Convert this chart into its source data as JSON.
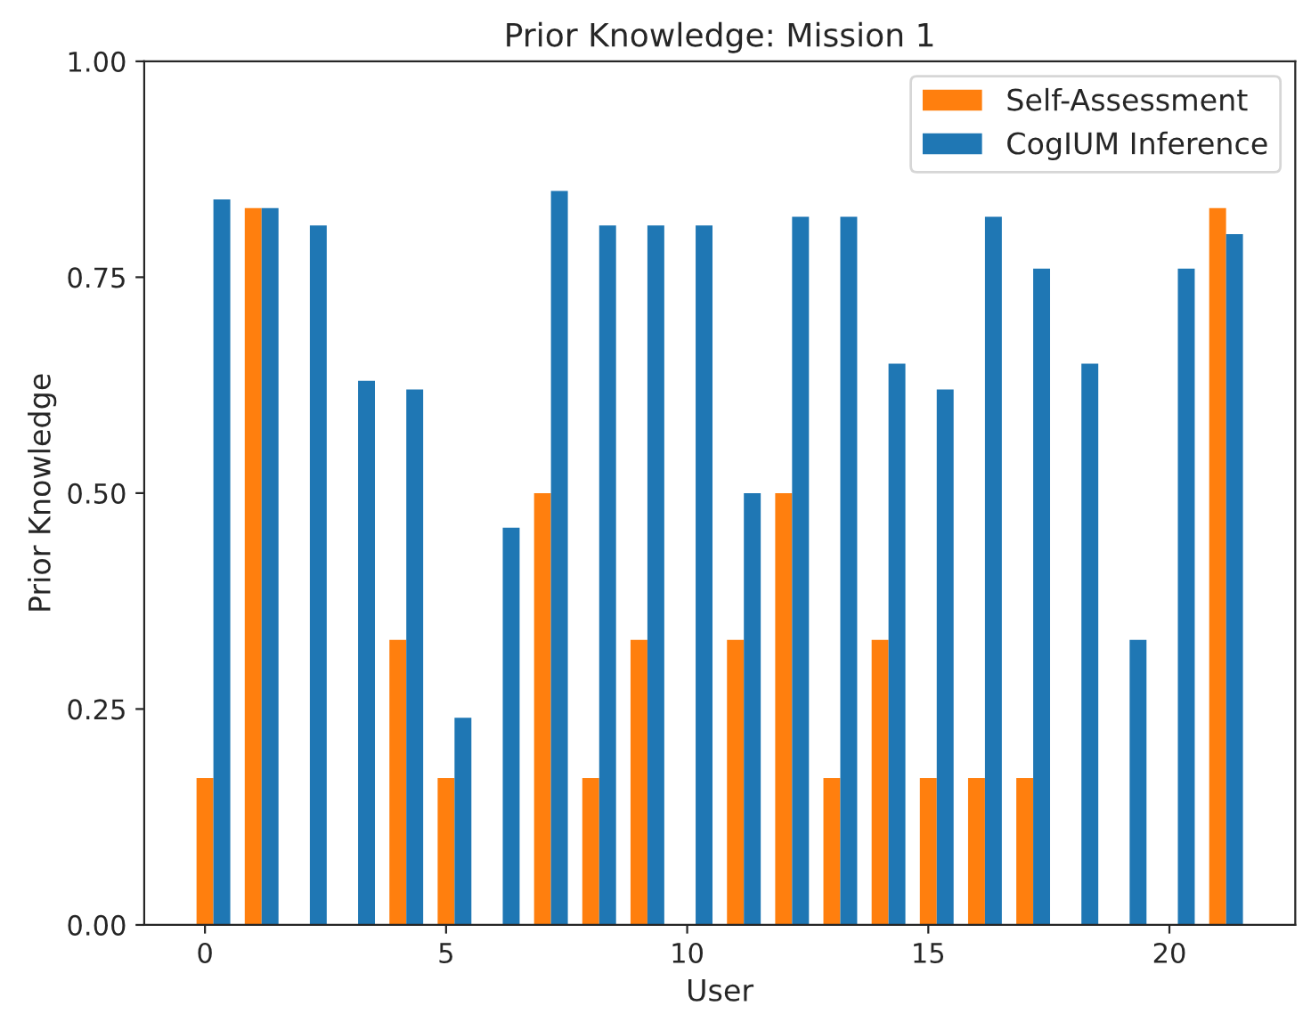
{
  "chart_data": {
    "type": "bar",
    "title": "Prior Knowledge: Mission 1",
    "xlabel": "User",
    "ylabel": "Prior Knowledge",
    "x": [
      0,
      1,
      2,
      3,
      4,
      5,
      6,
      7,
      8,
      9,
      10,
      11,
      12,
      13,
      14,
      15,
      16,
      17,
      18,
      19,
      20,
      21
    ],
    "series": [
      {
        "name": "Self-Assessment",
        "color": "#ff7f0e",
        "values": [
          0.17,
          0.83,
          0,
          0,
          0.33,
          0.17,
          0,
          0.5,
          0.17,
          0.33,
          0,
          0.33,
          0.5,
          0.17,
          0.33,
          0.17,
          0.17,
          0.17,
          0,
          0,
          0,
          0.83
        ]
      },
      {
        "name": "CogIUM Inference",
        "color": "#1f77b4",
        "values": [
          0.84,
          0.83,
          0.81,
          0.63,
          0.62,
          0.24,
          0.46,
          0.85,
          0.81,
          0.81,
          0.81,
          0.5,
          0.82,
          0.82,
          0.65,
          0.62,
          0.82,
          0.76,
          0.65,
          0.33,
          0.76,
          0.8
        ]
      }
    ],
    "xlim": [
      -1.26,
      22.61
    ],
    "xticks": [
      0,
      5,
      10,
      15,
      20
    ],
    "ylim": [
      0,
      1
    ],
    "yticks": [
      {
        "value": 0,
        "label": "0.00"
      },
      {
        "value": 0.25,
        "label": "0.25"
      },
      {
        "value": 0.5,
        "label": "0.50"
      },
      {
        "value": 0.75,
        "label": "0.75"
      },
      {
        "value": 1,
        "label": "1.00"
      }
    ],
    "legend": "top right",
    "grid": false
  }
}
